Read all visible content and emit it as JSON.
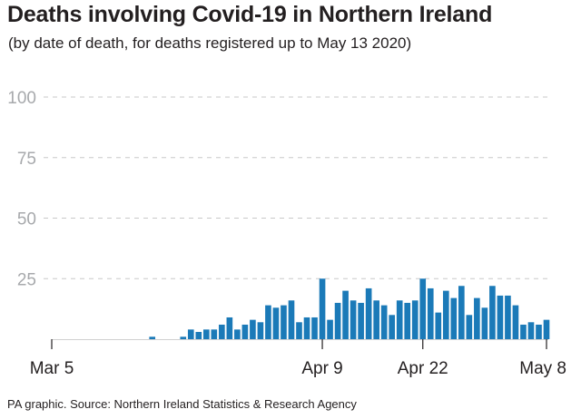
{
  "chart_data": {
    "type": "bar",
    "title": "Deaths involving Covid-19 in Northern Ireland",
    "subtitle": "(by date of death, for deaths registered up to May 13 2020)",
    "source": "PA graphic. Source: Northern Ireland Statistics & Research Agency",
    "xlabel": "",
    "ylabel": "",
    "ylim": [
      0,
      100
    ],
    "yticks": [
      25,
      50,
      75,
      100
    ],
    "grid": true,
    "bar_color": "#1b7ab8",
    "x_tick_labels": [
      {
        "label": "Mar 5",
        "index": 0
      },
      {
        "label": "Apr 9",
        "index": 35
      },
      {
        "label": "Apr 22",
        "index": 48
      },
      {
        "label": "May 8",
        "index": 64
      }
    ],
    "categories": [
      "Mar 5",
      "Mar 6",
      "Mar 7",
      "Mar 8",
      "Mar 9",
      "Mar 10",
      "Mar 11",
      "Mar 12",
      "Mar 13",
      "Mar 14",
      "Mar 15",
      "Mar 16",
      "Mar 17",
      "Mar 18",
      "Mar 19",
      "Mar 20",
      "Mar 21",
      "Mar 22",
      "Mar 23",
      "Mar 24",
      "Mar 25",
      "Mar 26",
      "Mar 27",
      "Mar 28",
      "Mar 29",
      "Mar 30",
      "Mar 31",
      "Apr 1",
      "Apr 2",
      "Apr 3",
      "Apr 4",
      "Apr 5",
      "Apr 6",
      "Apr 7",
      "Apr 8",
      "Apr 9",
      "Apr 10",
      "Apr 11",
      "Apr 12",
      "Apr 13",
      "Apr 14",
      "Apr 15",
      "Apr 16",
      "Apr 17",
      "Apr 18",
      "Apr 19",
      "Apr 20",
      "Apr 21",
      "Apr 22",
      "Apr 23",
      "Apr 24",
      "Apr 25",
      "Apr 26",
      "Apr 27",
      "Apr 28",
      "Apr 29",
      "Apr 30",
      "May 1",
      "May 2",
      "May 3",
      "May 4",
      "May 5",
      "May 6",
      "May 7",
      "May 8"
    ],
    "values": [
      0,
      0,
      0,
      0,
      0,
      0,
      0,
      0,
      0,
      0,
      0,
      0,
      0,
      1,
      0,
      0,
      0,
      1,
      4,
      3,
      4,
      4,
      6,
      9,
      4,
      6,
      8,
      7,
      14,
      13,
      14,
      16,
      7,
      9,
      9,
      25,
      8,
      15,
      20,
      16,
      15,
      21,
      16,
      14,
      10,
      16,
      15,
      16,
      25,
      21,
      11,
      20,
      17,
      22,
      10,
      17,
      13,
      22,
      18,
      18,
      14,
      6,
      7,
      6,
      8
    ]
  }
}
